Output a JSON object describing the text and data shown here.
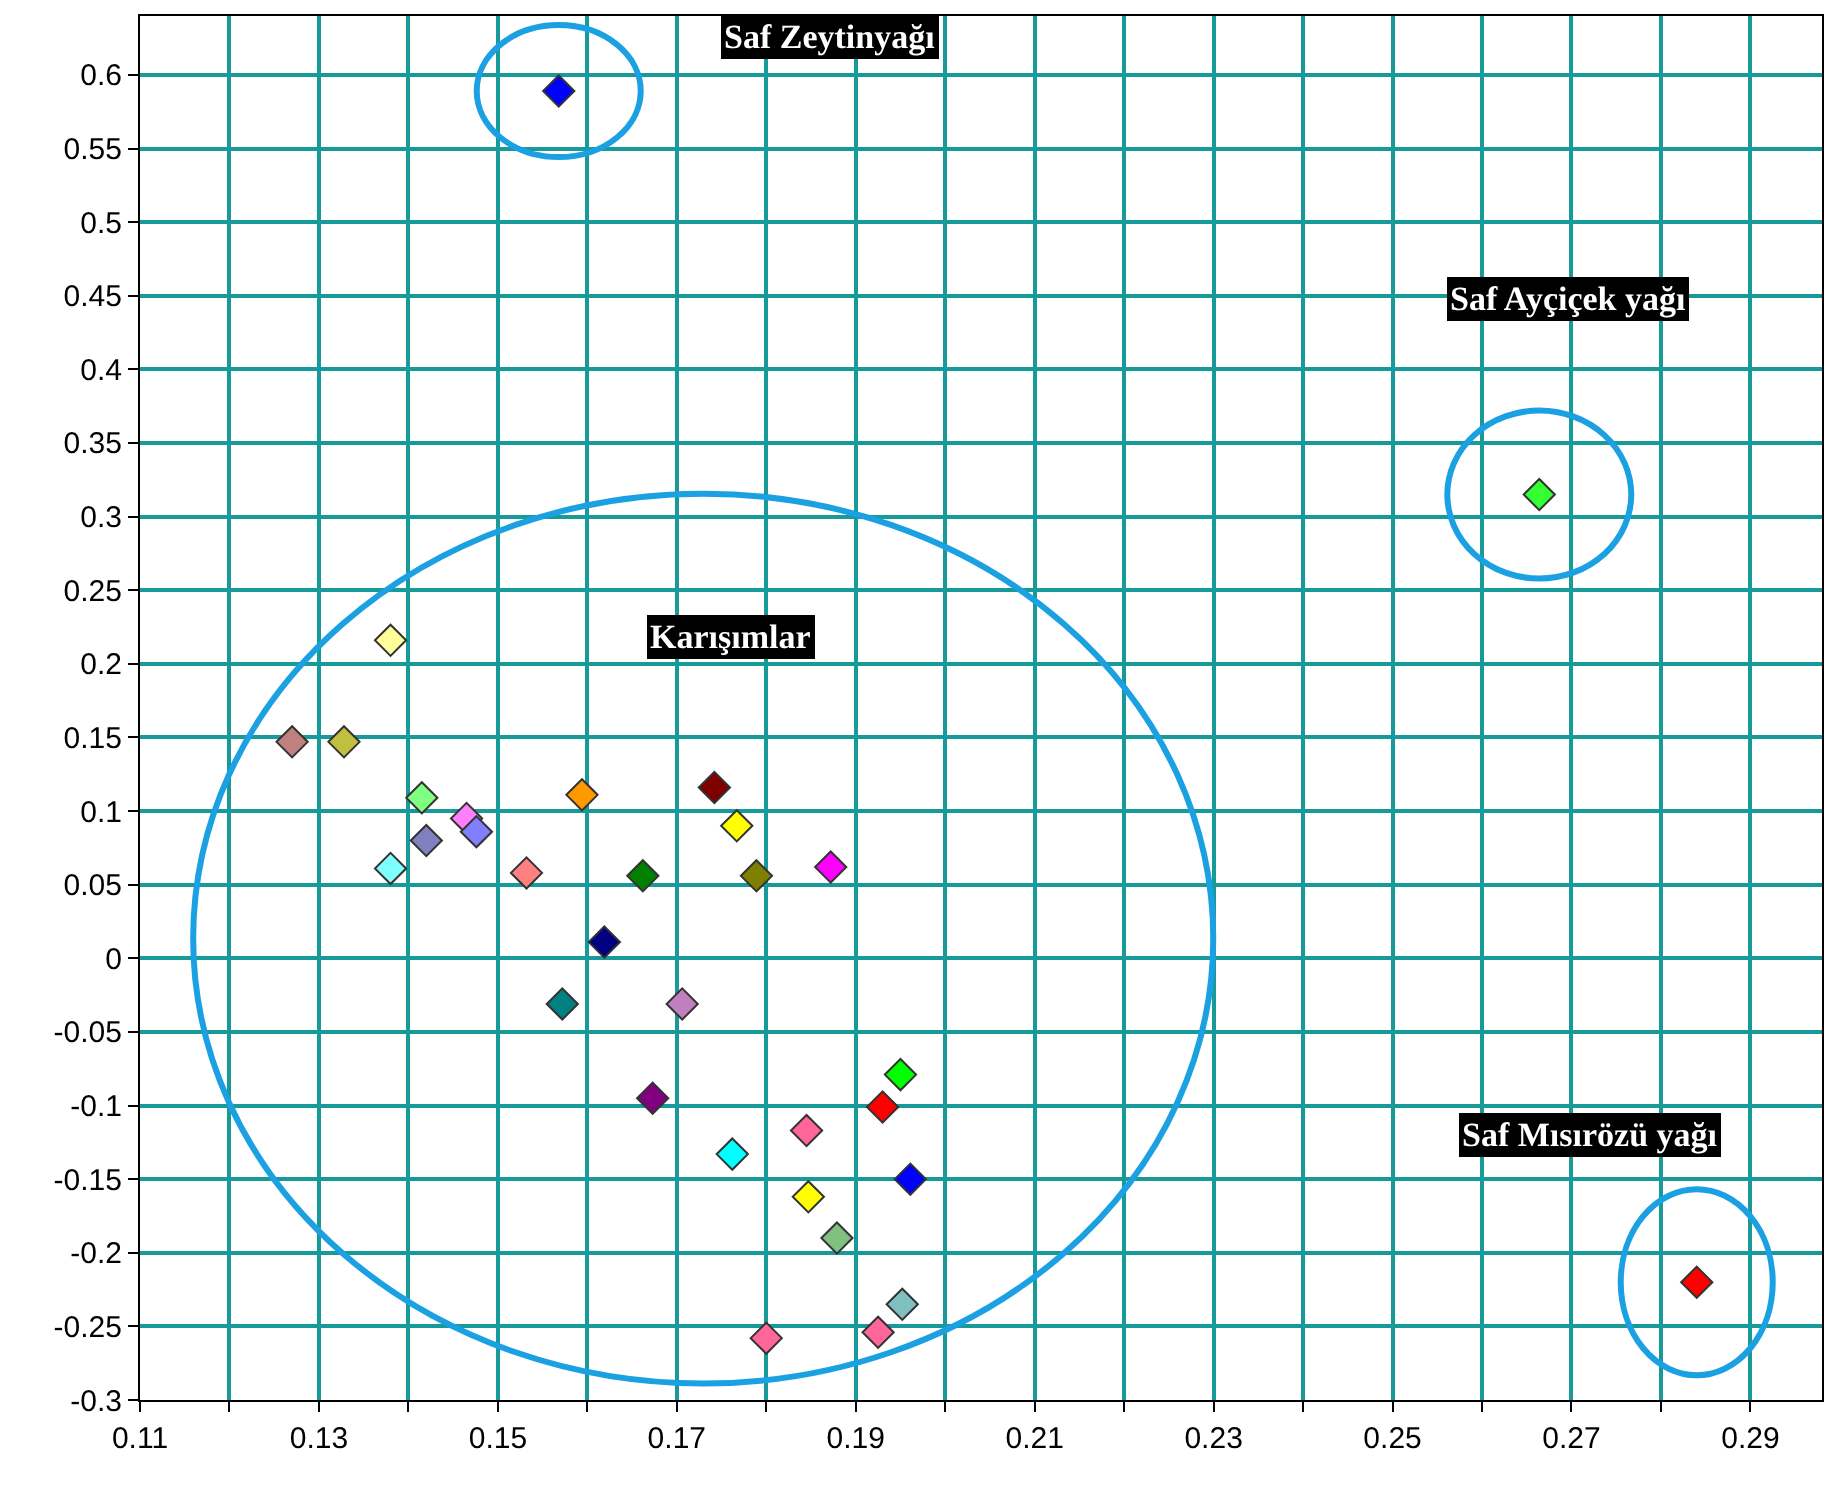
{
  "chart_data": {
    "type": "scatter",
    "marker": "diamond",
    "grid": true,
    "x": [
      0.1568,
      0.2664,
      0.284,
      0.138,
      0.127,
      0.1328,
      0.1415,
      0.1465,
      0.1476,
      0.142,
      0.138,
      0.1532,
      0.1594,
      0.1662,
      0.1742,
      0.1767,
      0.1789,
      0.1872,
      0.1619,
      0.1572,
      0.1706,
      0.1673,
      0.1762,
      0.1845,
      0.195,
      0.193,
      0.1961,
      0.1847,
      0.1879,
      0.18,
      0.1925,
      0.1952
    ],
    "values": [
      0.589,
      0.315,
      -0.22,
      0.216,
      0.147,
      0.147,
      0.109,
      0.095,
      0.086,
      0.08,
      0.061,
      0.058,
      0.111,
      0.056,
      0.116,
      0.09,
      0.056,
      0.062,
      0.011,
      -0.031,
      -0.031,
      -0.095,
      -0.133,
      -0.117,
      -0.079,
      -0.101,
      -0.15,
      -0.162,
      -0.19,
      -0.258,
      -0.254,
      -0.235
    ],
    "colors": [
      "#0000ff",
      "#33ff33",
      "#ff0000",
      "#ffff99",
      "#c08080",
      "#c0c040",
      "#80ff80",
      "#ff80ff",
      "#8080ff",
      "#8080c0",
      "#80ffff",
      "#ff8080",
      "#ff9900",
      "#008000",
      "#800000",
      "#ffff00",
      "#808000",
      "#ff00ff",
      "#000080",
      "#008080",
      "#c080c0",
      "#800080",
      "#00ffff",
      "#ff6699",
      "#00ff00",
      "#ff0000",
      "#0000ff",
      "#ffff00",
      "#80c080",
      "#ff6699",
      "#ff6699",
      "#80c0c0"
    ],
    "xlim": [
      0.11,
      0.298
    ],
    "xticks": [
      0.11,
      {
        "value": 0.12,
        "label": null
      },
      0.13,
      {
        "value": 0.14,
        "label": null
      },
      0.15,
      {
        "value": 0.16,
        "label": null
      },
      0.17,
      {
        "value": 0.18,
        "label": null
      },
      0.19,
      {
        "value": 0.2,
        "label": null
      },
      0.21,
      {
        "value": 0.22,
        "label": null
      },
      0.23,
      {
        "value": 0.24,
        "label": null
      },
      0.25,
      {
        "value": 0.26,
        "label": null
      },
      0.27,
      {
        "value": 0.28,
        "label": null
      },
      0.29
    ],
    "ylim": [
      -0.3,
      0.64
    ],
    "yticks": [
      -0.3,
      -0.25,
      -0.2,
      -0.15,
      -0.1,
      -0.05,
      0,
      0.05,
      0.1,
      0.15,
      0.2,
      0.25,
      0.3,
      0.35,
      0.4,
      0.45,
      0.5,
      0.55,
      0.6
    ],
    "annotations": [
      "Saf Zeytinyağı",
      "Saf Ayçiçek yağı",
      "Saf Mısırözü yağı",
      "Karışımlar"
    ]
  }
}
